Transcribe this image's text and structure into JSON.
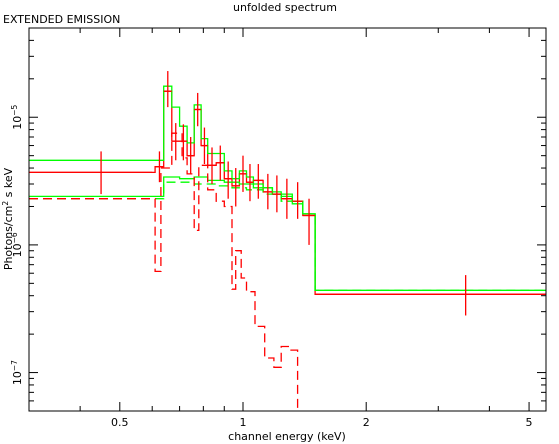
{
  "chart_data": {
    "type": "line",
    "title": "unfolded spectrum",
    "annotation": "EXTENDED EMISSION",
    "xlabel": "channel energy (keV)",
    "ylabel": {
      "base": "Photons/cm",
      "sup": "2",
      "rest": " s keV"
    },
    "xscale": "log",
    "yscale": "log",
    "xlim": [
      0.3,
      5.5
    ],
    "ylim": [
      5e-08,
      5e-05
    ],
    "xticks": [
      {
        "v": 0.5,
        "label": "0.5"
      },
      {
        "v": 1,
        "label": "1"
      },
      {
        "v": 2,
        "label": "2"
      },
      {
        "v": 5,
        "label": "5"
      }
    ],
    "yticks": [
      {
        "v": 1e-07,
        "base": "10",
        "exp": "−7"
      },
      {
        "v": 1e-06,
        "base": "10",
        "exp": "−6"
      },
      {
        "v": 1e-05,
        "base": "10",
        "exp": "−5"
      }
    ],
    "grid": false,
    "colors": {
      "data": "#ff0000",
      "model": "#00ff00",
      "axes": "#000000"
    },
    "data_points": [
      {
        "x": 0.45,
        "xerr": [
          0.3,
          0.6
        ],
        "y": 3.7e-06,
        "yerr": [
          2.5e-06,
          5.4e-06
        ]
      },
      {
        "x": 0.625,
        "xerr": [
          0.61,
          0.64
        ],
        "y": 4.1e-06,
        "yerr": [
          3.1e-06,
          5.4e-06
        ]
      },
      {
        "x": 0.655,
        "xerr": [
          0.64,
          0.67
        ],
        "y": 1.6e-05,
        "yerr": [
          1.2e-05,
          2.3e-05
        ]
      },
      {
        "x": 0.685,
        "xerr": [
          0.67,
          0.7
        ],
        "y": 6.5e-06,
        "yerr": [
          4.6e-06,
          9e-06
        ]
      },
      {
        "x": 0.715,
        "xerr": [
          0.7,
          0.73
        ],
        "y": 6.5e-06,
        "yerr": [
          4.6e-06,
          8.8e-06
        ]
      },
      {
        "x": 0.745,
        "xerr": [
          0.73,
          0.76
        ],
        "y": 5e-06,
        "yerr": [
          3.6e-06,
          7e-06
        ]
      },
      {
        "x": 0.775,
        "xerr": [
          0.76,
          0.79
        ],
        "y": 1.15e-05,
        "yerr": [
          8.5e-06,
          1.55e-05
        ]
      },
      {
        "x": 0.805,
        "xerr": [
          0.79,
          0.82
        ],
        "y": 6e-06,
        "yerr": [
          4.3e-06,
          8.3e-06
        ]
      },
      {
        "x": 0.84,
        "xerr": [
          0.82,
          0.86
        ],
        "y": 4.2e-06,
        "yerr": [
          3e-06,
          5.8e-06
        ]
      },
      {
        "x": 0.88,
        "xerr": [
          0.86,
          0.9
        ],
        "y": 4.4e-06,
        "yerr": [
          3.2e-06,
          6e-06
        ]
      },
      {
        "x": 0.92,
        "xerr": [
          0.9,
          0.94
        ],
        "y": 3.3e-06,
        "yerr": [
          2.3e-06,
          4.5e-06
        ]
      },
      {
        "x": 0.96,
        "xerr": [
          0.94,
          0.98
        ],
        "y": 2.9e-06,
        "yerr": [
          2e-06,
          4e-06
        ]
      },
      {
        "x": 1.0,
        "xerr": [
          0.98,
          1.02
        ],
        "y": 3.6e-06,
        "yerr": [
          2.6e-06,
          5e-06
        ]
      },
      {
        "x": 1.04,
        "xerr": [
          1.02,
          1.06
        ],
        "y": 3.1e-06,
        "yerr": [
          2.2e-06,
          4.3e-06
        ]
      },
      {
        "x": 1.09,
        "xerr": [
          1.06,
          1.12
        ],
        "y": 3.2e-06,
        "yerr": [
          2.3e-06,
          4.3e-06
        ]
      },
      {
        "x": 1.15,
        "xerr": [
          1.12,
          1.18
        ],
        "y": 2.6e-06,
        "yerr": [
          1.9e-06,
          3.6e-06
        ]
      },
      {
        "x": 1.21,
        "xerr": [
          1.18,
          1.24
        ],
        "y": 2.5e-06,
        "yerr": [
          1.8e-06,
          3.5e-06
        ]
      },
      {
        "x": 1.28,
        "xerr": [
          1.24,
          1.32
        ],
        "y": 2.3e-06,
        "yerr": [
          1.6e-06,
          3.3e-06
        ]
      },
      {
        "x": 1.36,
        "xerr": [
          1.32,
          1.4
        ],
        "y": 2.2e-06,
        "yerr": [
          1.6e-06,
          3.1e-06
        ]
      },
      {
        "x": 1.45,
        "xerr": [
          1.4,
          1.5
        ],
        "y": 1.7e-06,
        "yerr": [
          1e-06,
          2.3e-06
        ]
      },
      {
        "x": 3.5,
        "xerr": [
          1.5,
          5.5
        ],
        "y": 4.1e-07,
        "yerr": [
          2.8e-07,
          5.8e-07
        ]
      }
    ],
    "series": [
      {
        "kind": "step",
        "color": "#ff0000",
        "dash": false,
        "steps": [
          [
            0.3,
            3.7e-06
          ],
          [
            0.61,
            4.1e-06
          ],
          [
            0.64,
            1.6e-05
          ],
          [
            0.67,
            6.5e-06
          ],
          [
            0.73,
            5e-06
          ],
          [
            0.76,
            1.15e-05
          ],
          [
            0.79,
            6e-06
          ],
          [
            0.82,
            4.2e-06
          ],
          [
            0.86,
            4.4e-06
          ],
          [
            0.9,
            3.3e-06
          ],
          [
            0.94,
            2.9e-06
          ],
          [
            0.98,
            3.6e-06
          ],
          [
            1.02,
            3.1e-06
          ],
          [
            1.06,
            3.2e-06
          ],
          [
            1.12,
            2.6e-06
          ],
          [
            1.18,
            2.5e-06
          ],
          [
            1.24,
            2.3e-06
          ],
          [
            1.32,
            2.2e-06
          ],
          [
            1.4,
            1.7e-06
          ],
          [
            1.5,
            4.1e-07
          ],
          [
            5.5,
            4.1e-07
          ]
        ]
      },
      {
        "kind": "step",
        "color": "#00ff00",
        "dash": false,
        "steps": [
          [
            0.3,
            4.6e-06
          ],
          [
            0.61,
            4.6e-06
          ],
          [
            0.64,
            1.75e-05
          ],
          [
            0.67,
            1.2e-05
          ],
          [
            0.7,
            8.5e-06
          ],
          [
            0.73,
            6.3e-06
          ],
          [
            0.76,
            1.25e-05
          ],
          [
            0.79,
            6.8e-06
          ],
          [
            0.82,
            5.2e-06
          ],
          [
            0.86,
            5.2e-06
          ],
          [
            0.9,
            3.8e-06
          ],
          [
            0.94,
            3.3e-06
          ],
          [
            0.98,
            3.8e-06
          ],
          [
            1.02,
            3.4e-06
          ],
          [
            1.06,
            3e-06
          ],
          [
            1.12,
            2.8e-06
          ],
          [
            1.18,
            2.6e-06
          ],
          [
            1.24,
            2.4e-06
          ],
          [
            1.32,
            2.2e-06
          ],
          [
            1.4,
            1.75e-06
          ],
          [
            1.5,
            4.4e-07
          ],
          [
            5.5,
            4.4e-07
          ]
        ]
      },
      {
        "kind": "step",
        "color": "#00ff00",
        "dash": false,
        "steps": [
          [
            0.3,
            2.4e-06
          ],
          [
            0.61,
            2.4e-06
          ],
          [
            0.64,
            3.4e-06
          ],
          [
            0.7,
            3.3e-06
          ],
          [
            0.76,
            3.4e-06
          ],
          [
            0.82,
            3.2e-06
          ],
          [
            0.9,
            3.1e-06
          ],
          [
            0.98,
            3e-06
          ],
          [
            1.06,
            2.8e-06
          ],
          [
            1.18,
            2.5e-06
          ],
          [
            1.32,
            2.1e-06
          ],
          [
            1.4,
            1.75e-06
          ],
          [
            1.5,
            4.4e-07
          ],
          [
            5.5,
            4.4e-07
          ]
        ]
      },
      {
        "kind": "step",
        "color": "#00ff00",
        "dash": true,
        "steps": [
          [
            0.3,
            2.3e-06
          ],
          [
            0.61,
            2.3e-06
          ],
          [
            0.64,
            3.1e-06
          ],
          [
            0.76,
            3e-06
          ],
          [
            0.86,
            2.9e-06
          ],
          [
            0.94,
            2.8e-06
          ],
          [
            1.02,
            2.7e-06
          ],
          [
            1.12,
            2.5e-06
          ],
          [
            1.24,
            2.2e-06
          ],
          [
            1.4,
            1.75e-06
          ],
          [
            1.5,
            4.4e-07
          ],
          [
            5.5,
            4.4e-07
          ]
        ]
      },
      {
        "kind": "step",
        "color": "#ff0000",
        "dash": true,
        "steps": [
          [
            0.3,
            2.3e-06
          ],
          [
            0.61,
            6.2e-07
          ],
          [
            0.63,
            4e-06
          ],
          [
            0.67,
            7.5e-06
          ],
          [
            0.71,
            4.8e-06
          ],
          [
            0.73,
            3.6e-06
          ],
          [
            0.76,
            1.3e-06
          ],
          [
            0.78,
            4.2e-06
          ],
          [
            0.82,
            2.7e-06
          ],
          [
            0.86,
            2.2e-06
          ],
          [
            0.9,
            2e-06
          ],
          [
            0.94,
            4.5e-07
          ],
          [
            0.96,
            9e-07
          ],
          [
            0.99,
            5.5e-07
          ],
          [
            1.02,
            4.3e-07
          ],
          [
            1.07,
            2.3e-07
          ],
          [
            1.13,
            1.3e-07
          ],
          [
            1.19,
            1.1e-07
          ],
          [
            1.24,
            1.6e-07
          ],
          [
            1.31,
            1.5e-07
          ],
          [
            1.36,
            3e-08
          ]
        ]
      }
    ]
  }
}
